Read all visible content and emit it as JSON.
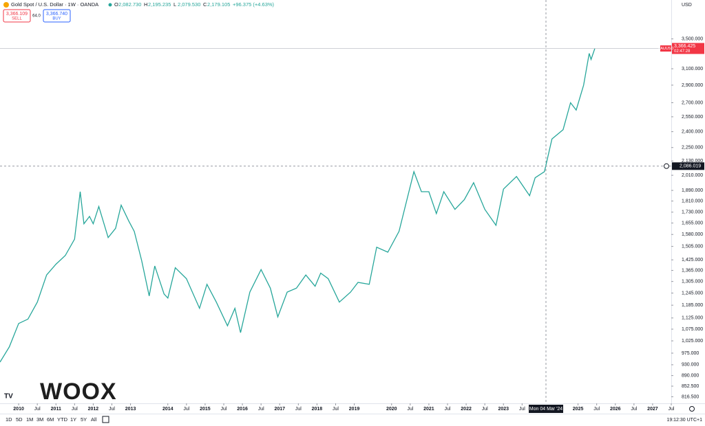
{
  "header": {
    "symbol": "Gold Spot / U.S. Dollar · 1W · OANDA",
    "ohlc": [
      {
        "key": "O",
        "value": "2,082.730"
      },
      {
        "key": "H",
        "value": "2,195.235"
      },
      {
        "key": "L",
        "value": "2,079.530"
      },
      {
        "key": "C",
        "value": "2,179.105"
      }
    ],
    "change": "+96.375 (+4.63%)"
  },
  "trade": {
    "sell_price": "3,366.109",
    "sell": "SELL",
    "spread": "64.0",
    "buy_price": "3,366.740",
    "buy": "BUY"
  },
  "currency": "USD",
  "watermark": "WOOX",
  "crosshair": {
    "price": {
      "value": 2086.019,
      "label": "2,086.019"
    },
    "date": "Mon 04 Mar '24"
  },
  "last_price": {
    "symbol": "XAUUSD",
    "price": {
      "value": 3366.425,
      "label": "3,366.425"
    },
    "countdown": "02:47:28"
  },
  "range_buttons": [
    "1D",
    "5D",
    "1M",
    "3M",
    "6M",
    "YTD",
    "1Y",
    "5Y",
    "All"
  ],
  "clock": "19:12:30 UTC+1",
  "chart_data": {
    "type": "line",
    "log_scale": true,
    "grid": false,
    "x": [
      2009.5,
      2009.75,
      2010.0,
      2010.25,
      2010.5,
      2010.75,
      2011.0,
      2011.25,
      2011.5,
      2011.65,
      2011.75,
      2011.9,
      2012.0,
      2012.15,
      2012.4,
      2012.6,
      2012.75,
      2012.95,
      2013.1,
      2013.3,
      2013.5,
      2013.65,
      2013.9,
      2014.0,
      2014.2,
      2014.5,
      2014.85,
      2015.05,
      2015.3,
      2015.6,
      2015.8,
      2015.95,
      2016.2,
      2016.5,
      2016.75,
      2016.95,
      2017.2,
      2017.45,
      2017.7,
      2017.95,
      2018.1,
      2018.3,
      2018.6,
      2018.9,
      2019.1,
      2019.4,
      2019.6,
      2019.9,
      2020.2,
      2020.6,
      2020.8,
      2021.0,
      2021.2,
      2021.4,
      2021.7,
      2021.95,
      2022.2,
      2022.5,
      2022.8,
      2023.0,
      2023.35,
      2023.7,
      2023.85,
      2024.1,
      2024.3,
      2024.6,
      2024.8,
      2024.95,
      2025.15,
      2025.3,
      2025.35,
      2025.45
    ],
    "series": [
      {
        "name": "XAUUSD",
        "color": "#26a69a",
        "values": [
          940,
          1000,
          1100,
          1120,
          1200,
          1340,
          1400,
          1450,
          1550,
          1880,
          1650,
          1700,
          1650,
          1770,
          1560,
          1620,
          1780,
          1670,
          1600,
          1420,
          1230,
          1390,
          1240,
          1220,
          1380,
          1320,
          1170,
          1290,
          1200,
          1090,
          1170,
          1060,
          1250,
          1370,
          1270,
          1130,
          1250,
          1270,
          1340,
          1280,
          1350,
          1320,
          1200,
          1250,
          1300,
          1290,
          1500,
          1470,
          1600,
          2040,
          1880,
          1880,
          1720,
          1880,
          1750,
          1820,
          1950,
          1750,
          1640,
          1900,
          2000,
          1850,
          1990,
          2040,
          2330,
          2420,
          2700,
          2620,
          2900,
          3300,
          3220,
          3366.425
        ]
      }
    ],
    "xlim": [
      2009.5,
      2027.5
    ],
    "xticks": [
      2010,
      {
        "value": 2010.5,
        "label": "Jul"
      },
      2011,
      {
        "value": 2011.5,
        "label": "Jul"
      },
      2012,
      {
        "value": 2012.5,
        "label": "Jul"
      },
      2013,
      2014,
      {
        "value": 2014.5,
        "label": "Jul"
      },
      2015,
      {
        "value": 2015.5,
        "label": "Jul"
      },
      2016,
      {
        "value": 2016.5,
        "label": "Jul"
      },
      2017,
      {
        "value": 2017.5,
        "label": "Jul"
      },
      2018,
      {
        "value": 2018.5,
        "label": "Jul"
      },
      2019,
      2020,
      {
        "value": 2020.5,
        "label": "Jul"
      },
      2021,
      {
        "value": 2021.5,
        "label": "Jul"
      },
      2022,
      {
        "value": 2022.5,
        "label": "Jul"
      },
      2023,
      {
        "value": 2023.5,
        "label": "Jul"
      },
      2025,
      {
        "value": 2025.5,
        "label": "Jul"
      },
      2026,
      {
        "value": 2026.5,
        "label": "Jul"
      },
      2027,
      {
        "value": 2027.5,
        "label": "Jul"
      }
    ],
    "ylim": [
      795,
      4100
    ],
    "yticks": [
      {
        "value": 3500,
        "label": "3,500.000"
      },
      {
        "value": 3100,
        "label": "3,100.000"
      },
      {
        "value": 2900,
        "label": "2,900.000"
      },
      {
        "value": 2700,
        "label": "2,700.000"
      },
      {
        "value": 2550,
        "label": "2,550.000"
      },
      {
        "value": 2400,
        "label": "2,400.000"
      },
      {
        "value": 2250,
        "label": "2,250.000"
      },
      {
        "value": 2130,
        "label": "2,130.000"
      },
      {
        "value": 2010,
        "label": "2,010.000"
      },
      {
        "value": 1890,
        "label": "1,890.000"
      },
      {
        "value": 1810,
        "label": "1,810.000"
      },
      {
        "value": 1730,
        "label": "1,730.000"
      },
      {
        "value": 1655,
        "label": "1,655.000"
      },
      {
        "value": 1580,
        "label": "1,580.000"
      },
      {
        "value": 1505,
        "label": "1,505.000"
      },
      {
        "value": 1425,
        "label": "1,425.000"
      },
      {
        "value": 1365,
        "label": "1,365.000"
      },
      {
        "value": 1305,
        "label": "1,305.000"
      },
      {
        "value": 1245,
        "label": "1,245.000"
      },
      {
        "value": 1185,
        "label": "1,185.000"
      },
      {
        "value": 1125,
        "label": "1,125.000"
      },
      {
        "value": 1075,
        "label": "1,075.000"
      },
      {
        "value": 1025,
        "label": "1,025.000"
      },
      {
        "value": 975,
        "label": "975.000"
      },
      {
        "value": 930,
        "label": "930.000"
      },
      {
        "value": 890,
        "label": "890.000"
      },
      {
        "value": 852.5,
        "label": "852.500"
      },
      {
        "value": 816.5,
        "label": "816.500"
      }
    ]
  }
}
